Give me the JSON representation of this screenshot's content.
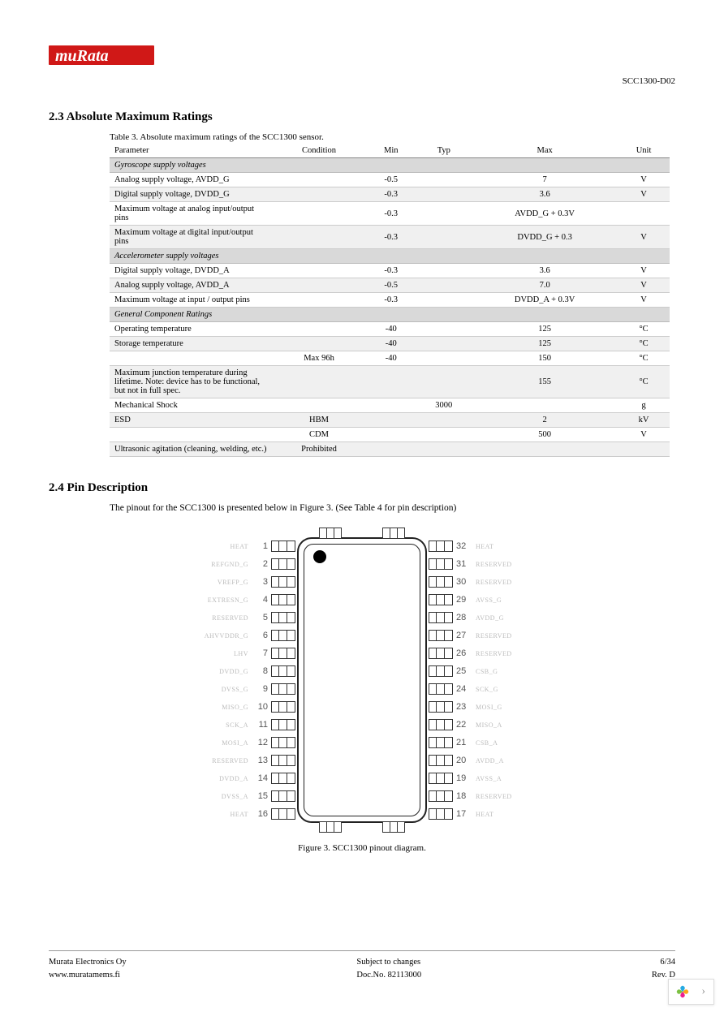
{
  "header": {
    "doc_id": "SCC1300-D02"
  },
  "logo": {
    "fill": "#d01817",
    "text": "muRata"
  },
  "section23": {
    "number_title": "2.3  Absolute Maximum Ratings",
    "caption": "Table 3. Absolute maximum ratings of the SCC1300 sensor.",
    "columns": [
      "Parameter",
      "Condition",
      "Min",
      "Typ",
      "Max",
      "Unit"
    ],
    "groups": [
      {
        "name": "Gyroscope supply voltages",
        "rows": [
          {
            "param": "Analog supply voltage, AVDD_G",
            "cond": "",
            "min": "-0.5",
            "typ": "",
            "max": "7",
            "unit": "V",
            "alt": false
          },
          {
            "param": "Digital supply voltage, DVDD_G",
            "cond": "",
            "min": "-0.3",
            "typ": "",
            "max": "3.6",
            "unit": "V",
            "alt": true
          },
          {
            "param": "Maximum voltage at analog input/output pins",
            "cond": "",
            "min": "-0.3",
            "typ": "",
            "max": "AVDD_G + 0.3V",
            "unit": "",
            "alt": false
          },
          {
            "param": "Maximum voltage at digital input/output pins",
            "cond": "",
            "min": "-0.3",
            "typ": "",
            "max": "DVDD_G + 0.3",
            "unit": "V",
            "alt": true
          }
        ]
      },
      {
        "name": "Accelerometer supply voltages",
        "rows": [
          {
            "param": "Digital supply voltage, DVDD_A",
            "cond": "",
            "min": "-0.3",
            "typ": "",
            "max": "3.6",
            "unit": "V",
            "alt": false
          },
          {
            "param": "Analog supply voltage, AVDD_A",
            "cond": "",
            "min": "-0.5",
            "typ": "",
            "max": "7.0",
            "unit": "V",
            "alt": true
          },
          {
            "param": "Maximum voltage at input / output pins",
            "cond": "",
            "min": "-0.3",
            "typ": "",
            "max": "DVDD_A + 0.3V",
            "unit": "V",
            "alt": false
          }
        ]
      },
      {
        "name": "General Component Ratings",
        "rows": [
          {
            "param": "Operating temperature",
            "cond": "",
            "min": "-40",
            "typ": "",
            "max": "125",
            "unit": "°C",
            "alt": false
          },
          {
            "param": "Storage temperature",
            "cond": "",
            "min": "-40",
            "typ": "",
            "max": "125",
            "unit": "°C",
            "alt": true
          },
          {
            "param": "",
            "cond": "Max 96h",
            "min": "-40",
            "typ": "",
            "max": "150",
            "unit": "°C",
            "alt": false
          },
          {
            "param": "Maximum junction temperature during lifetime. Note: device has to be functional, but not in full spec.",
            "cond": "",
            "min": "",
            "typ": "",
            "max": "155",
            "unit": "°C",
            "alt": true
          },
          {
            "param": "Mechanical Shock",
            "cond": "",
            "min": "",
            "typ": "3000",
            "max": "",
            "unit": "g",
            "alt": false
          },
          {
            "param": "ESD",
            "cond": "HBM",
            "min": "",
            "typ": "",
            "max": "2",
            "unit": "kV",
            "alt": true
          },
          {
            "param": "",
            "cond": "CDM",
            "min": "",
            "typ": "",
            "max": "500",
            "unit": "V",
            "alt": false
          },
          {
            "param": "Ultrasonic agitation (cleaning, welding, etc.)",
            "cond": "Prohibited",
            "min": "",
            "typ": "",
            "max": "",
            "unit": "",
            "alt": true
          }
        ]
      }
    ]
  },
  "section24": {
    "number_title": "2.4  Pin Description",
    "intro": "The pinout for the SCC1300 is presented below in Figure 3. (See Table 4 for pin description)",
    "fig_caption": "Figure 3. SCC1300 pinout diagram."
  },
  "pinout": {
    "left": [
      {
        "num": "1",
        "name": "HEAT"
      },
      {
        "num": "2",
        "name": "REFGND_G"
      },
      {
        "num": "3",
        "name": "VREFP_G"
      },
      {
        "num": "4",
        "name": "EXTRESN_G"
      },
      {
        "num": "5",
        "name": "RESERVED"
      },
      {
        "num": "6",
        "name": "AHVVDDR_G"
      },
      {
        "num": "7",
        "name": "LHV"
      },
      {
        "num": "8",
        "name": "DVDD_G"
      },
      {
        "num": "9",
        "name": "DVSS_G"
      },
      {
        "num": "10",
        "name": "MISO_G"
      },
      {
        "num": "11",
        "name": "SCK_A"
      },
      {
        "num": "12",
        "name": "MOSI_A"
      },
      {
        "num": "13",
        "name": "RESERVED"
      },
      {
        "num": "14",
        "name": "DVDD_A"
      },
      {
        "num": "15",
        "name": "DVSS_A"
      },
      {
        "num": "16",
        "name": "HEAT"
      }
    ],
    "right": [
      {
        "num": "32",
        "name": "HEAT"
      },
      {
        "num": "31",
        "name": "RESERVED"
      },
      {
        "num": "30",
        "name": "RESERVED"
      },
      {
        "num": "29",
        "name": "AVSS_G"
      },
      {
        "num": "28",
        "name": "AVDD_G"
      },
      {
        "num": "27",
        "name": "RESERVED"
      },
      {
        "num": "26",
        "name": "RESERVED"
      },
      {
        "num": "25",
        "name": "CSB_G"
      },
      {
        "num": "24",
        "name": "SCK_G"
      },
      {
        "num": "23",
        "name": "MOSI_G"
      },
      {
        "num": "22",
        "name": "MISO_A"
      },
      {
        "num": "21",
        "name": "CSB_A"
      },
      {
        "num": "20",
        "name": "AVDD_A"
      },
      {
        "num": "19",
        "name": "AVSS_A"
      },
      {
        "num": "18",
        "name": "RESERVED"
      },
      {
        "num": "17",
        "name": "HEAT"
      }
    ]
  },
  "footer": {
    "company": "Murata Electronics Oy",
    "url": "www.muratamems.fi",
    "center1": "Subject to changes",
    "center2": "Doc.No. 82113000",
    "page": "6/34",
    "rev": "Rev. D"
  },
  "nav": {
    "petal_colors": [
      "#7cc142",
      "#faa61a",
      "#ed1c8f",
      "#27aae1"
    ]
  }
}
